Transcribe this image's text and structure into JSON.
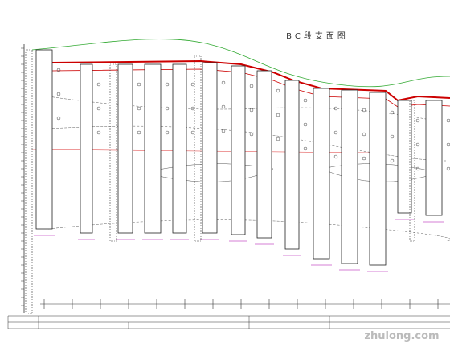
{
  "title": "BC段支面图",
  "watermark": "zhulong.com"
}
